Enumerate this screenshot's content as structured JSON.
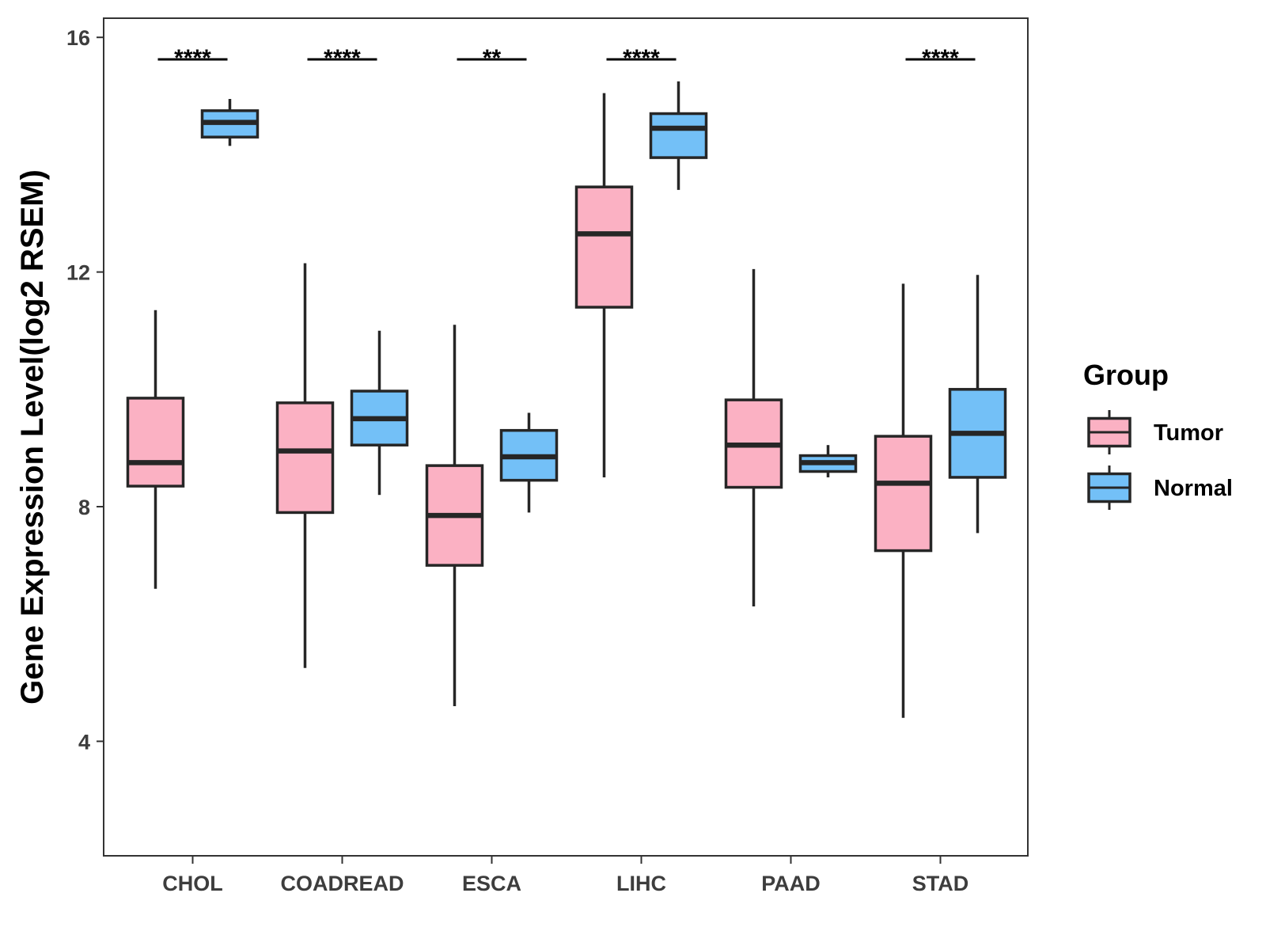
{
  "chart_data": {
    "type": "boxplot",
    "title": "",
    "xlabel": "",
    "ylabel": "Gene Expression Level(log2 RSEM)",
    "ylim": [
      2,
      16.3
    ],
    "yticks": [
      4,
      8,
      12,
      16
    ],
    "ytick_labels": [
      "4",
      "8",
      "12",
      "16"
    ],
    "grid": false,
    "legend_position": "right",
    "categories": [
      "CHOL",
      "COADREAD",
      "ESCA",
      "LIHC",
      "PAAD",
      "STAD"
    ],
    "significance": [
      "****",
      "****",
      "**",
      "****",
      "",
      "****"
    ],
    "legend": {
      "title": "Group",
      "entries": [
        "Tumor",
        "Normal"
      ]
    },
    "series": [
      {
        "name": "Tumor",
        "color": "#FBB1C3",
        "boxes": [
          {
            "whisker_low": 6.6,
            "q1": 8.35,
            "median": 8.75,
            "q3": 9.85,
            "whisker_high": 11.35
          },
          {
            "whisker_low": 5.25,
            "q1": 7.9,
            "median": 8.95,
            "q3": 9.77,
            "whisker_high": 12.15
          },
          {
            "whisker_low": 4.6,
            "q1": 7.0,
            "median": 7.85,
            "q3": 8.7,
            "whisker_high": 11.1
          },
          {
            "whisker_low": 8.5,
            "q1": 11.4,
            "median": 12.65,
            "q3": 13.45,
            "whisker_high": 15.05
          },
          {
            "whisker_low": 6.3,
            "q1": 8.33,
            "median": 9.05,
            "q3": 9.82,
            "whisker_high": 12.05
          },
          {
            "whisker_low": 4.4,
            "q1": 7.25,
            "median": 8.4,
            "q3": 9.2,
            "whisker_high": 11.8
          }
        ]
      },
      {
        "name": "Normal",
        "color": "#73C0F7",
        "boxes": [
          {
            "whisker_low": 14.15,
            "q1": 14.3,
            "median": 14.55,
            "q3": 14.75,
            "whisker_high": 14.95
          },
          {
            "whisker_low": 8.2,
            "q1": 9.05,
            "median": 9.5,
            "q3": 9.97,
            "whisker_high": 11.0
          },
          {
            "whisker_low": 7.9,
            "q1": 8.45,
            "median": 8.85,
            "q3": 9.3,
            "whisker_high": 9.6
          },
          {
            "whisker_low": 13.4,
            "q1": 13.95,
            "median": 14.45,
            "q3": 14.7,
            "whisker_high": 15.25
          },
          {
            "whisker_low": 8.5,
            "q1": 8.6,
            "median": 8.75,
            "q3": 8.87,
            "whisker_high": 9.05
          },
          {
            "whisker_low": 7.55,
            "q1": 8.5,
            "median": 9.25,
            "q3": 10.0,
            "whisker_high": 11.95
          }
        ]
      }
    ]
  }
}
